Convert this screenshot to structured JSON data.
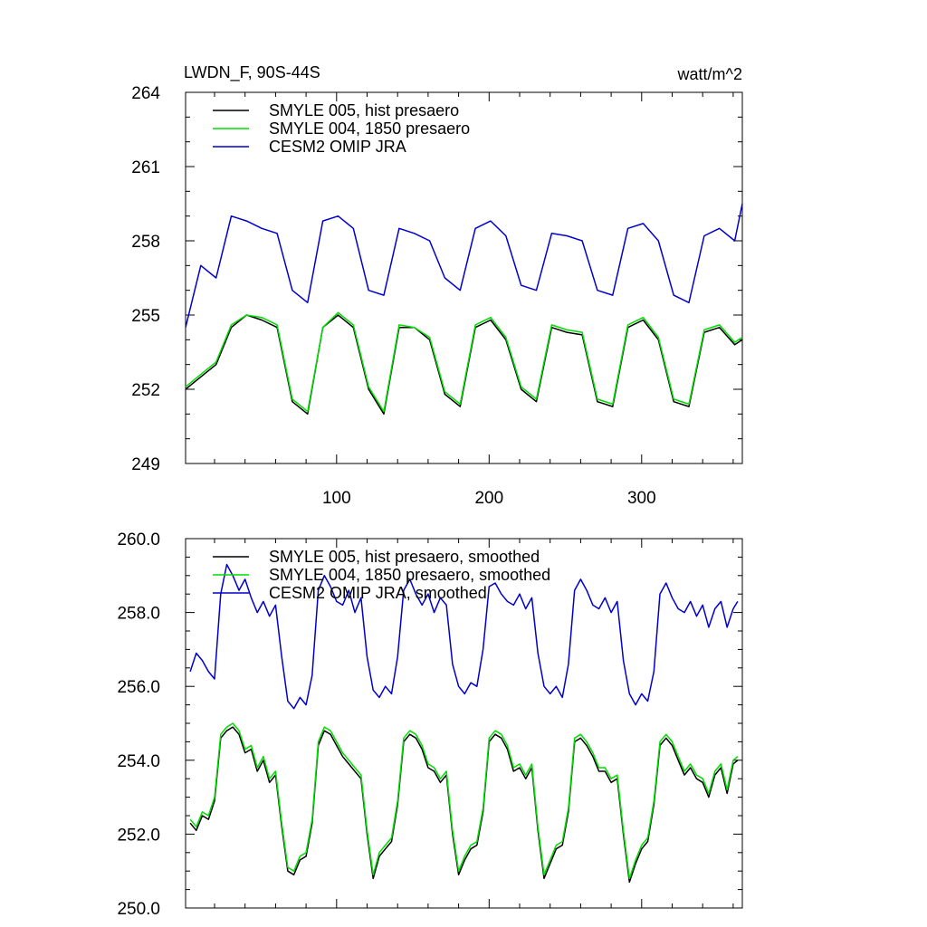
{
  "chart_data": [
    {
      "type": "line",
      "title": "LWDN_F, 90S-44S",
      "units": "watt/m^2",
      "xlim": [
        1,
        366
      ],
      "ylim": [
        249,
        264
      ],
      "y_ticks": [
        249,
        252,
        255,
        258,
        261,
        264
      ],
      "y_tick_labels": [
        "249",
        "252",
        "255",
        "258",
        "261",
        "264"
      ],
      "x_ticks": [
        100,
        200,
        300
      ],
      "x_tick_labels": [
        "100",
        "200",
        "300"
      ],
      "legend_location": "top-left",
      "grid": false,
      "series": [
        {
          "name": "SMYLE 005, hist presaero",
          "color": "#000000",
          "x": [
            1,
            11,
            21,
            31,
            41,
            51,
            61,
            71,
            81,
            91,
            101,
            111,
            121,
            131,
            141,
            151,
            161,
            171,
            181,
            191,
            201,
            211,
            221,
            231,
            241,
            251,
            261,
            271,
            281,
            291,
            301,
            311,
            321,
            331,
            341,
            351,
            361,
            366
          ],
          "values": [
            252.0,
            252.5,
            253.0,
            254.5,
            255.0,
            254.8,
            254.5,
            251.5,
            251.0,
            254.5,
            255.0,
            254.5,
            252.0,
            251.0,
            254.5,
            254.5,
            254.0,
            251.8,
            251.3,
            254.5,
            254.8,
            254.0,
            252.0,
            251.5,
            254.5,
            254.3,
            254.2,
            251.5,
            251.3,
            254.5,
            254.8,
            254.0,
            251.5,
            251.3,
            254.3,
            254.5,
            253.8,
            254.0
          ]
        },
        {
          "name": "SMYLE 004, 1850 presaero",
          "color": "#00dd00",
          "x": [
            1,
            11,
            21,
            31,
            41,
            51,
            61,
            71,
            81,
            91,
            101,
            111,
            121,
            131,
            141,
            151,
            161,
            171,
            181,
            191,
            201,
            211,
            221,
            231,
            241,
            251,
            261,
            271,
            281,
            291,
            301,
            311,
            321,
            331,
            341,
            351,
            361,
            366
          ],
          "values": [
            252.1,
            252.6,
            253.1,
            254.6,
            255.0,
            254.9,
            254.6,
            251.6,
            251.1,
            254.5,
            255.1,
            254.6,
            252.1,
            251.1,
            254.6,
            254.5,
            254.1,
            251.9,
            251.4,
            254.6,
            254.9,
            254.1,
            252.1,
            251.6,
            254.6,
            254.4,
            254.3,
            251.6,
            251.4,
            254.6,
            254.9,
            254.1,
            251.6,
            251.4,
            254.4,
            254.6,
            253.9,
            254.1
          ]
        },
        {
          "name": "CESM2 OMIP JRA",
          "color": "#0000cc",
          "x": [
            1,
            11,
            21,
            31,
            41,
            51,
            61,
            71,
            81,
            91,
            101,
            111,
            121,
            131,
            141,
            151,
            161,
            171,
            181,
            191,
            201,
            211,
            221,
            231,
            241,
            251,
            261,
            271,
            281,
            291,
            301,
            311,
            321,
            331,
            341,
            351,
            361,
            366
          ],
          "values": [
            254.5,
            257.0,
            256.5,
            259.0,
            258.8,
            258.5,
            258.3,
            256.0,
            255.5,
            258.8,
            259.0,
            258.5,
            256.0,
            255.8,
            258.5,
            258.3,
            258.0,
            256.5,
            256.0,
            258.5,
            258.8,
            258.2,
            256.2,
            256.0,
            258.3,
            258.2,
            258.0,
            256.0,
            255.8,
            258.5,
            258.7,
            258.0,
            255.8,
            255.5,
            258.2,
            258.5,
            258.0,
            259.5
          ]
        }
      ]
    },
    {
      "type": "line",
      "xlim": [
        1,
        366
      ],
      "ylim": [
        250.0,
        260.0
      ],
      "y_ticks": [
        250.0,
        252.0,
        254.0,
        256.0,
        258.0,
        260.0
      ],
      "y_tick_labels": [
        "250.0",
        "252.0",
        "254.0",
        "256.0",
        "258.0",
        "260.0"
      ],
      "x_ticks": [
        100,
        200,
        300
      ],
      "legend_location": "top-left",
      "grid": false,
      "series": [
        {
          "name": "SMYLE 005, hist presaero, smoothed",
          "color": "#000000",
          "x": [
            4,
            8,
            12,
            16,
            20,
            24,
            28,
            32,
            36,
            40,
            44,
            48,
            52,
            56,
            60,
            64,
            68,
            72,
            76,
            80,
            84,
            88,
            92,
            96,
            100,
            104,
            108,
            112,
            116,
            120,
            124,
            128,
            132,
            136,
            140,
            144,
            148,
            152,
            156,
            160,
            164,
            168,
            172,
            176,
            180,
            184,
            188,
            192,
            196,
            200,
            204,
            208,
            212,
            216,
            220,
            224,
            228,
            232,
            236,
            240,
            244,
            248,
            252,
            256,
            260,
            264,
            268,
            272,
            276,
            280,
            284,
            288,
            292,
            296,
            300,
            304,
            308,
            312,
            316,
            320,
            324,
            328,
            332,
            336,
            340,
            344,
            348,
            352,
            356,
            360,
            363
          ],
          "values": [
            252.3,
            252.1,
            252.5,
            252.4,
            252.9,
            254.6,
            254.8,
            254.9,
            254.7,
            254.2,
            254.3,
            253.7,
            254.0,
            253.4,
            253.6,
            252.2,
            251.0,
            250.9,
            251.3,
            251.4,
            252.3,
            254.4,
            254.8,
            254.7,
            254.4,
            254.1,
            253.9,
            253.7,
            253.5,
            252.0,
            250.8,
            251.4,
            251.6,
            251.8,
            252.8,
            254.5,
            254.7,
            254.6,
            254.3,
            253.8,
            253.7,
            253.4,
            253.6,
            252.0,
            250.9,
            251.3,
            251.6,
            251.7,
            252.6,
            254.5,
            254.7,
            254.6,
            254.3,
            253.7,
            253.8,
            253.5,
            253.8,
            252.1,
            250.8,
            251.2,
            251.6,
            251.7,
            252.6,
            254.5,
            254.6,
            254.4,
            254.1,
            253.7,
            253.7,
            253.4,
            253.5,
            252.0,
            250.7,
            251.2,
            251.6,
            251.8,
            252.8,
            254.4,
            254.6,
            254.4,
            254.0,
            253.6,
            253.8,
            253.5,
            253.4,
            253.0,
            253.6,
            253.8,
            253.1,
            253.9,
            254.0
          ]
        },
        {
          "name": "SMYLE 004, 1850 presaero, smoothed",
          "color": "#00dd00",
          "x": [
            4,
            8,
            12,
            16,
            20,
            24,
            28,
            32,
            36,
            40,
            44,
            48,
            52,
            56,
            60,
            64,
            68,
            72,
            76,
            80,
            84,
            88,
            92,
            96,
            100,
            104,
            108,
            112,
            116,
            120,
            124,
            128,
            132,
            136,
            140,
            144,
            148,
            152,
            156,
            160,
            164,
            168,
            172,
            176,
            180,
            184,
            188,
            192,
            196,
            200,
            204,
            208,
            212,
            216,
            220,
            224,
            228,
            232,
            236,
            240,
            244,
            248,
            252,
            256,
            260,
            264,
            268,
            272,
            276,
            280,
            284,
            288,
            292,
            296,
            300,
            304,
            308,
            312,
            316,
            320,
            324,
            328,
            332,
            336,
            340,
            344,
            348,
            352,
            356,
            360,
            363
          ],
          "values": [
            252.4,
            252.2,
            252.6,
            252.5,
            253.0,
            254.7,
            254.9,
            255.0,
            254.8,
            254.3,
            254.4,
            253.8,
            254.1,
            253.5,
            253.7,
            252.3,
            251.1,
            251.0,
            251.4,
            251.5,
            252.4,
            254.5,
            254.9,
            254.8,
            254.5,
            254.2,
            254.0,
            253.8,
            253.6,
            252.1,
            250.9,
            251.5,
            251.7,
            251.9,
            252.9,
            254.6,
            254.8,
            254.7,
            254.4,
            253.9,
            253.8,
            253.5,
            253.7,
            252.1,
            251.0,
            251.4,
            251.7,
            251.8,
            252.7,
            254.6,
            254.8,
            254.7,
            254.4,
            253.8,
            253.9,
            253.6,
            253.9,
            252.2,
            250.9,
            251.3,
            251.7,
            251.8,
            252.7,
            254.6,
            254.7,
            254.5,
            254.2,
            253.8,
            253.8,
            253.5,
            253.6,
            252.1,
            250.8,
            251.3,
            251.7,
            251.9,
            252.9,
            254.5,
            254.7,
            254.5,
            254.1,
            253.7,
            253.9,
            253.6,
            253.5,
            253.1,
            253.7,
            253.9,
            253.2,
            254.0,
            254.1
          ]
        },
        {
          "name": "CESM2 OMIP JRA, smoothed",
          "color": "#0000cc",
          "x": [
            4,
            8,
            12,
            16,
            20,
            24,
            28,
            32,
            36,
            40,
            44,
            48,
            52,
            56,
            60,
            64,
            68,
            72,
            76,
            80,
            84,
            88,
            92,
            96,
            100,
            104,
            108,
            112,
            116,
            120,
            124,
            128,
            132,
            136,
            140,
            144,
            148,
            152,
            156,
            160,
            164,
            168,
            172,
            176,
            180,
            184,
            188,
            192,
            196,
            200,
            204,
            208,
            212,
            216,
            220,
            224,
            228,
            232,
            236,
            240,
            244,
            248,
            252,
            256,
            260,
            264,
            268,
            272,
            276,
            280,
            284,
            288,
            292,
            296,
            300,
            304,
            308,
            312,
            316,
            320,
            324,
            328,
            332,
            336,
            340,
            344,
            348,
            352,
            356,
            360,
            363
          ],
          "values": [
            256.4,
            256.9,
            256.7,
            256.4,
            256.2,
            258.5,
            259.3,
            259.0,
            258.6,
            258.9,
            258.4,
            258.0,
            258.3,
            257.9,
            258.2,
            256.8,
            255.6,
            255.4,
            255.7,
            255.5,
            256.3,
            258.6,
            259.0,
            258.7,
            258.3,
            258.2,
            258.6,
            258.0,
            258.4,
            256.8,
            255.9,
            255.7,
            256.0,
            255.8,
            256.8,
            258.6,
            258.9,
            258.5,
            258.2,
            258.5,
            258.0,
            258.4,
            258.2,
            256.6,
            256.0,
            255.8,
            256.1,
            256.0,
            257.0,
            258.7,
            258.8,
            258.5,
            258.3,
            258.2,
            258.5,
            258.1,
            258.4,
            256.9,
            256.0,
            255.8,
            256.0,
            255.7,
            256.6,
            258.6,
            258.9,
            258.6,
            258.2,
            258.1,
            258.4,
            258.0,
            258.3,
            256.7,
            255.8,
            255.5,
            255.8,
            255.6,
            256.4,
            258.5,
            258.8,
            258.4,
            258.1,
            258.0,
            258.3,
            257.9,
            258.2,
            257.6,
            258.1,
            258.3,
            257.6,
            258.1,
            258.3
          ]
        }
      ]
    }
  ]
}
